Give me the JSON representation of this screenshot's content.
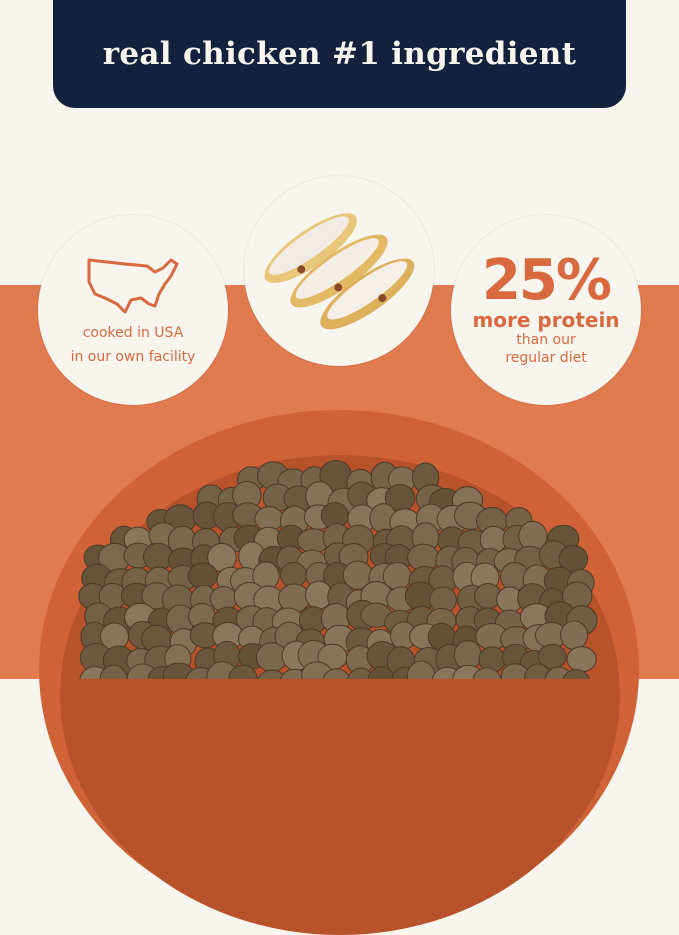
{
  "banner": {
    "title": "real chicken #1 ingredient"
  },
  "badges": [
    {
      "icon": "usa-map-icon",
      "line1": "cooked in USA",
      "line2": "in our own facility"
    },
    {
      "icon": "sliced-chicken-image"
    },
    {
      "headline": "25%",
      "line1": "more protein",
      "line2": "than our",
      "line3": "regular diet"
    }
  ],
  "colors": {
    "navy": "#14213d",
    "orange": "#e07a4f",
    "cream": "#f8f4ee",
    "bowl": "#cf6236"
  }
}
